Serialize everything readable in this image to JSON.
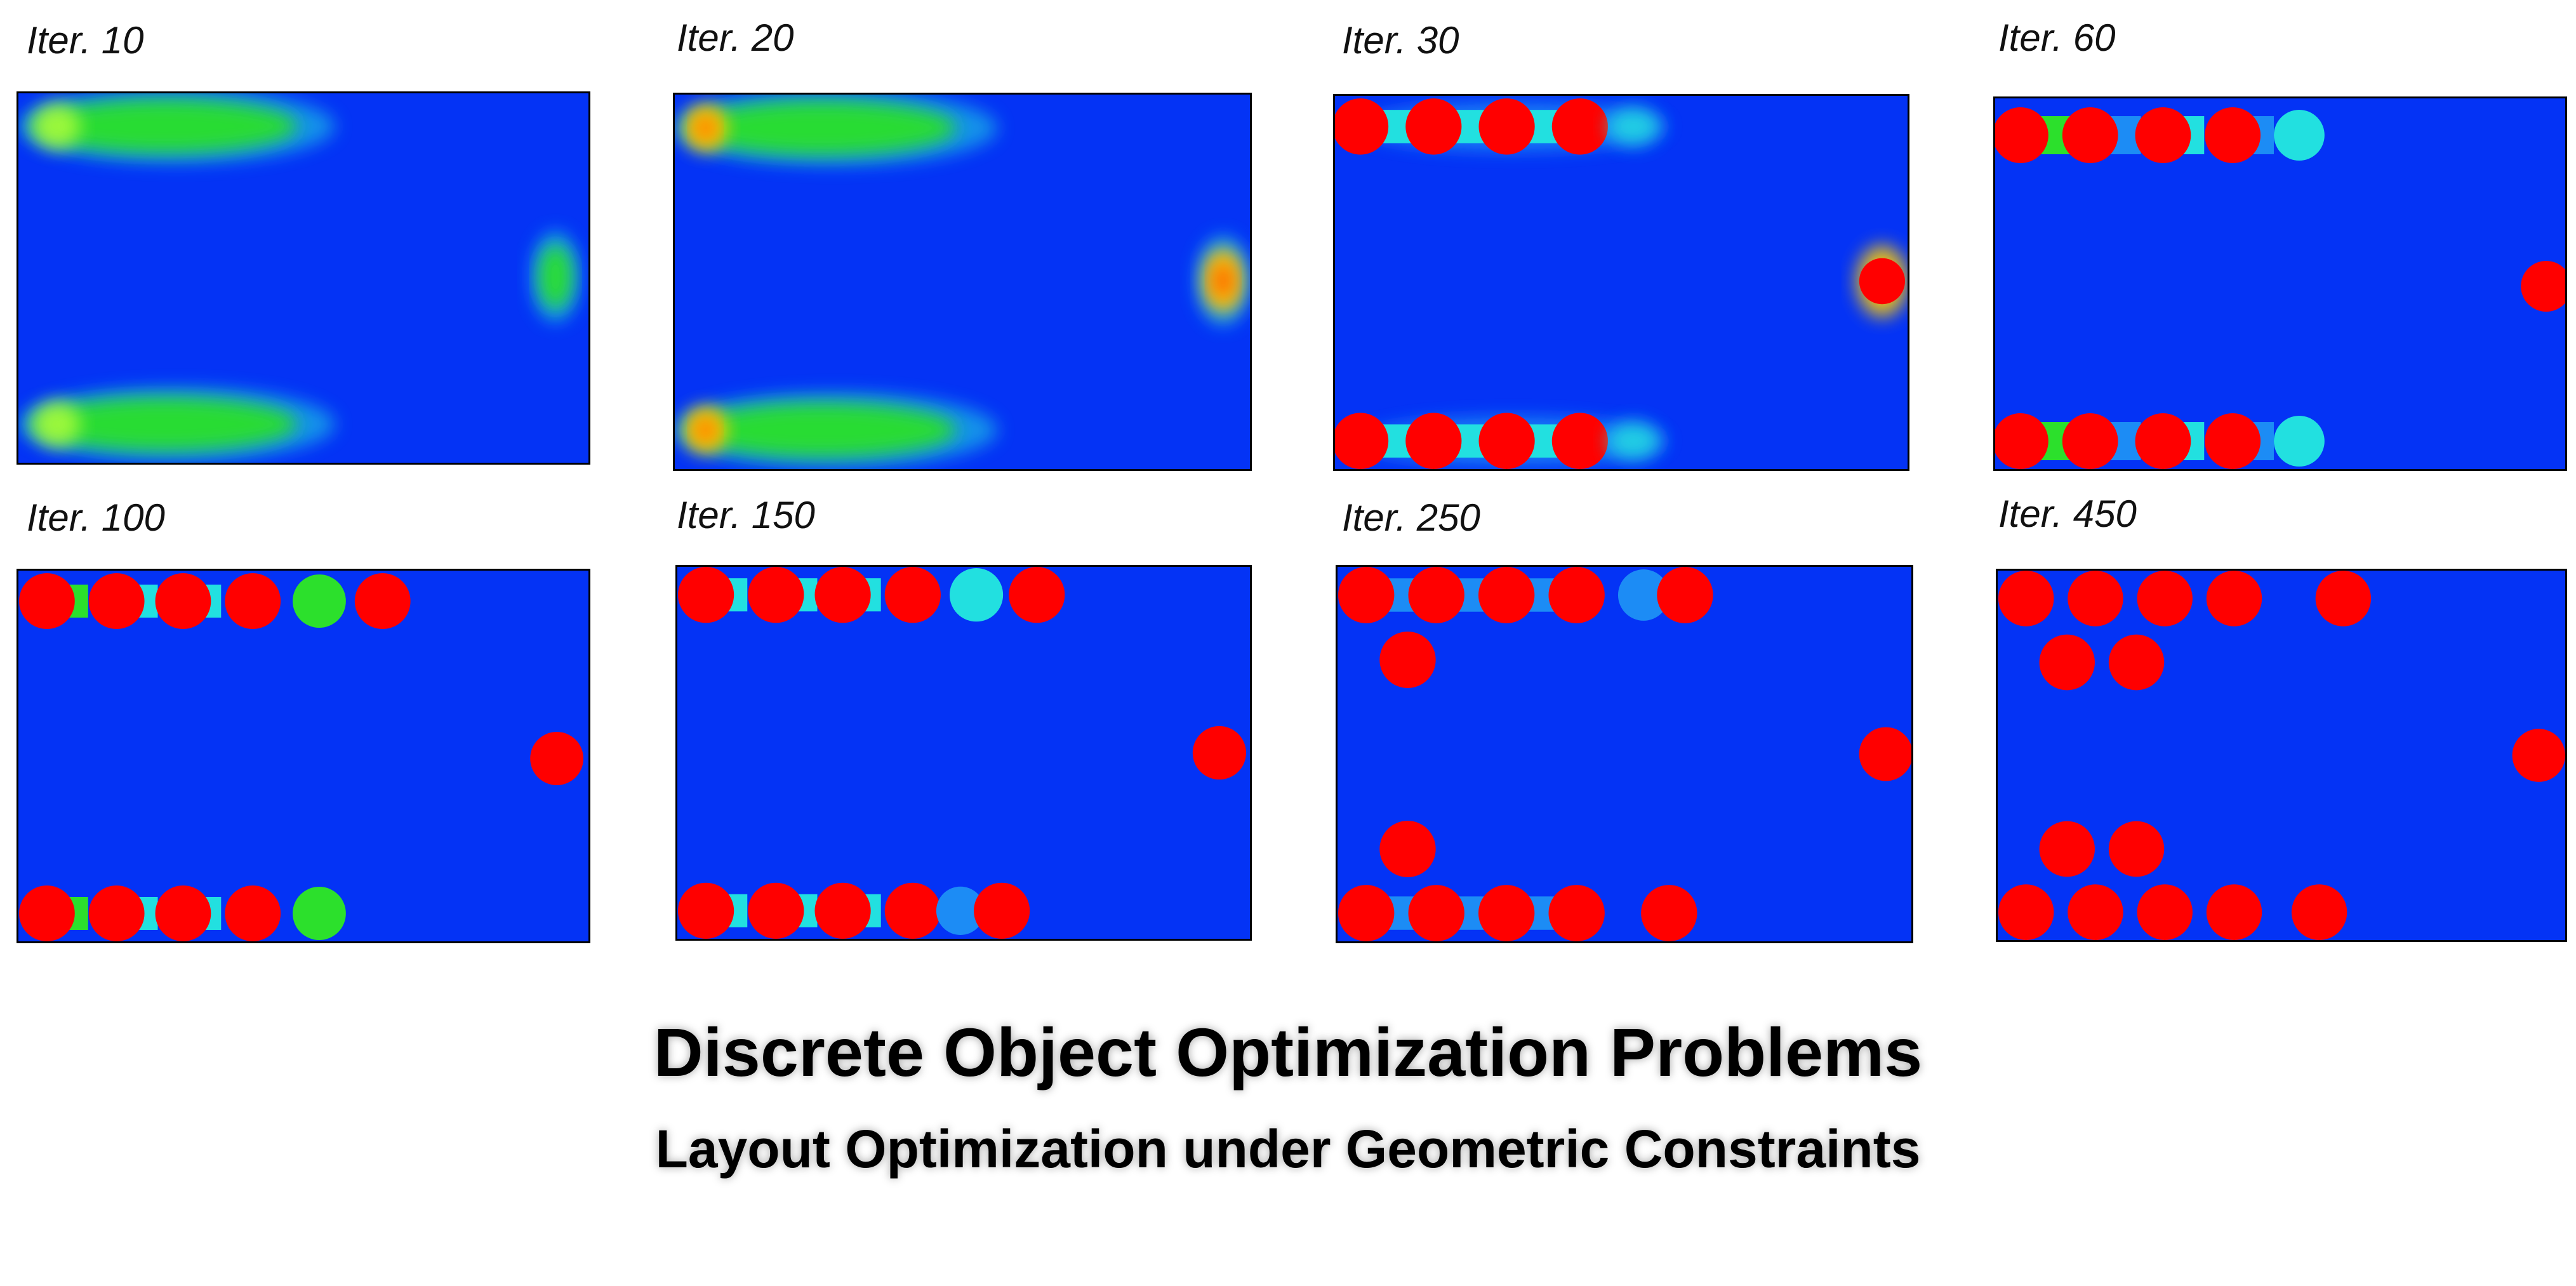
{
  "title": "Discrete Object Optimization Problems",
  "subtitle": "Layout Optimization under Geometric Constraints",
  "colors": {
    "background": "#0433f5",
    "object": "#ff0000",
    "glow": "#2ce02c",
    "hot": "#ffcc00",
    "cyan": "#22e0e0",
    "light_blue": "#1c8cf5"
  },
  "panels": [
    {
      "label": "Iter. 10",
      "stage": "blur1"
    },
    {
      "label": "Iter. 20",
      "stage": "blur2"
    },
    {
      "label": "Iter. 30",
      "stage": "i30"
    },
    {
      "label": "Iter. 60",
      "stage": "i60"
    },
    {
      "label": "Iter. 100",
      "stage": "i100"
    },
    {
      "label": "Iter. 150",
      "stage": "i150"
    },
    {
      "label": "Iter. 250",
      "stage": "i250"
    },
    {
      "label": "Iter. 450",
      "stage": "i450"
    }
  ]
}
